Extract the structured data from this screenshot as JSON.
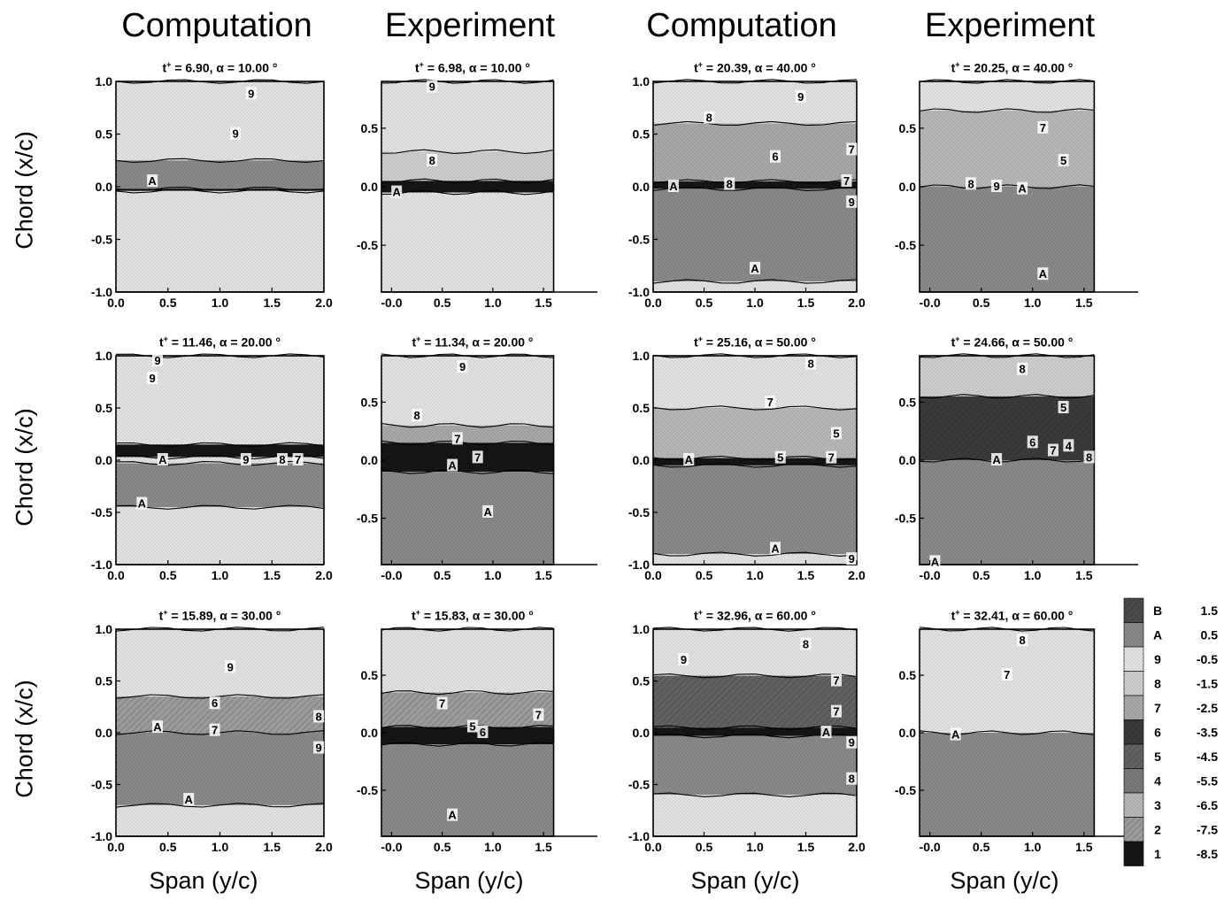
{
  "headers": {
    "col1": "Computation",
    "col2": "Experiment",
    "col3": "Computation",
    "col4": "Experiment"
  },
  "axis_labels": {
    "y_row1": "Chord (x/c)",
    "y_row2": "Chord (x/c)",
    "y_row3": "Chord (x/c)",
    "x_col1": "Span (y/c)",
    "x_col2": "Span (y/c)",
    "x_col3": "Span (y/c)",
    "x_col4": "Span (y/c)"
  },
  "chart_data": [
    {
      "type": "heatmap",
      "t_label": "t",
      "t_value": "6.90",
      "alpha": "10.00",
      "ylim": [
        -1.0,
        1.0
      ],
      "xlim": [
        0.0,
        2.0
      ],
      "x_ticks": [
        "0.0",
        "0.5",
        "1.0",
        "1.5",
        "2.0"
      ],
      "y_ticks": [
        "1.0",
        "0.5",
        "0.0",
        "-0.5",
        "-1.0"
      ],
      "contour_labels": [
        {
          "t": "9",
          "x": 1.3,
          "y": 0.88
        },
        {
          "t": "9",
          "x": 1.15,
          "y": 0.5
        },
        {
          "t": "A",
          "x": 0.35,
          "y": 0.05
        }
      ],
      "regions": [
        {
          "level": "9",
          "y0": 0.25,
          "y1": 1.0
        },
        {
          "level": "A",
          "y0": -0.02,
          "y1": 0.25
        },
        {
          "level": "1",
          "y0": -0.04,
          "y1": -0.02
        },
        {
          "level": "9",
          "y0": -1.0,
          "y1": -0.04
        }
      ]
    },
    {
      "type": "heatmap",
      "t_label": "t",
      "t_value": "6.98",
      "alpha": "10.00",
      "ylim": [
        -0.9,
        0.9
      ],
      "xlim": [
        -0.1,
        1.7
      ],
      "x_ticks": [
        "-0.0",
        "0.5",
        "1.0",
        "1.5"
      ],
      "y_ticks": [
        "0.5",
        "0.0",
        "-0.5"
      ],
      "contour_labels": [
        {
          "t": "9",
          "x": 0.4,
          "y": 0.85
        },
        {
          "t": "8",
          "x": 0.4,
          "y": 0.22
        },
        {
          "t": "A",
          "x": 0.05,
          "y": -0.05
        }
      ],
      "regions": [
        {
          "level": "9",
          "y0": 0.3,
          "y1": 0.9
        },
        {
          "level": "8",
          "y0": 0.05,
          "y1": 0.3
        },
        {
          "level": "1",
          "y0": -0.05,
          "y1": 0.05
        },
        {
          "level": "9",
          "y0": -0.9,
          "y1": -0.05
        }
      ]
    },
    {
      "type": "heatmap",
      "t_label": "t",
      "t_value": "20.39",
      "alpha": "40.00",
      "ylim": [
        -1.0,
        1.0
      ],
      "xlim": [
        0.0,
        2.0
      ],
      "x_ticks": [
        "0.0",
        "0.5",
        "1.0",
        "1.5",
        "2.0"
      ],
      "y_ticks": [
        "1.0",
        "0.5",
        "0.0",
        "-0.5",
        "-1.0"
      ],
      "contour_labels": [
        {
          "t": "9",
          "x": 1.45,
          "y": 0.85
        },
        {
          "t": "8",
          "x": 0.55,
          "y": 0.65
        },
        {
          "t": "6",
          "x": 1.2,
          "y": 0.28
        },
        {
          "t": "7",
          "x": 1.95,
          "y": 0.35
        },
        {
          "t": "A",
          "x": 0.2,
          "y": 0.0
        },
        {
          "t": "8",
          "x": 0.75,
          "y": 0.02
        },
        {
          "t": "7",
          "x": 1.9,
          "y": 0.05
        },
        {
          "t": "9",
          "x": 1.95,
          "y": -0.15
        },
        {
          "t": "A",
          "x": 1.0,
          "y": -0.78
        }
      ],
      "regions": [
        {
          "level": "9",
          "y0": 0.6,
          "y1": 1.0
        },
        {
          "level": "7",
          "y0": 0.05,
          "y1": 0.6
        },
        {
          "level": "1",
          "y0": -0.02,
          "y1": 0.05
        },
        {
          "level": "A",
          "y0": -0.9,
          "y1": -0.02
        },
        {
          "level": "9",
          "y0": -1.0,
          "y1": -0.9
        }
      ]
    },
    {
      "type": "heatmap",
      "t_label": "t",
      "t_value": "20.25",
      "alpha": "40.00",
      "ylim": [
        -0.9,
        0.9
      ],
      "xlim": [
        -0.1,
        1.7
      ],
      "x_ticks": [
        "-0.0",
        "0.5",
        "1.0",
        "1.5"
      ],
      "y_ticks": [
        "0.5",
        "0.0",
        "-0.5"
      ],
      "contour_labels": [
        {
          "t": "7",
          "x": 1.1,
          "y": 0.5
        },
        {
          "t": "5",
          "x": 1.3,
          "y": 0.22
        },
        {
          "t": "8",
          "x": 0.4,
          "y": 0.02
        },
        {
          "t": "9",
          "x": 0.65,
          "y": 0.0
        },
        {
          "t": "A",
          "x": 0.9,
          "y": -0.02
        },
        {
          "t": "A",
          "x": 1.1,
          "y": -0.75
        }
      ],
      "regions": [
        {
          "level": "9",
          "y0": 0.65,
          "y1": 0.9
        },
        {
          "level": "3",
          "y0": 0.0,
          "y1": 0.65
        },
        {
          "level": "A",
          "y0": -0.9,
          "y1": 0.0
        }
      ]
    },
    {
      "type": "heatmap",
      "t_label": "t",
      "t_value": "11.46",
      "alpha": "20.00",
      "ylim": [
        -1.0,
        1.0
      ],
      "xlim": [
        0.0,
        2.0
      ],
      "x_ticks": [
        "0.0",
        "0.5",
        "1.0",
        "1.5",
        "2.0"
      ],
      "y_ticks": [
        "1.0",
        "0.5",
        "0.0",
        "-0.5",
        "-1.0"
      ],
      "contour_labels": [
        {
          "t": "9",
          "x": 0.4,
          "y": 0.95
        },
        {
          "t": "9",
          "x": 0.35,
          "y": 0.78
        },
        {
          "t": "A",
          "x": 0.45,
          "y": 0.0
        },
        {
          "t": "9",
          "x": 1.25,
          "y": 0.0
        },
        {
          "t": "8",
          "x": 1.6,
          "y": 0.0
        },
        {
          "t": "7",
          "x": 1.75,
          "y": 0.0
        },
        {
          "t": "A",
          "x": 0.25,
          "y": -0.42
        }
      ],
      "regions": [
        {
          "level": "9",
          "y0": 0.15,
          "y1": 1.0
        },
        {
          "level": "1",
          "y0": 0.03,
          "y1": 0.15
        },
        {
          "level": "9",
          "y0": -0.03,
          "y1": 0.03
        },
        {
          "level": "A",
          "y0": -0.45,
          "y1": -0.03
        },
        {
          "level": "9",
          "y0": -1.0,
          "y1": -0.45
        }
      ]
    },
    {
      "type": "heatmap",
      "t_label": "t",
      "t_value": "11.34",
      "alpha": "20.00",
      "ylim": [
        -0.9,
        0.9
      ],
      "xlim": [
        -0.1,
        1.7
      ],
      "x_ticks": [
        "-0.0",
        "0.5",
        "1.0",
        "1.5"
      ],
      "y_ticks": [
        "0.5",
        "0.0",
        "-0.5"
      ],
      "contour_labels": [
        {
          "t": "9",
          "x": 0.7,
          "y": 0.8
        },
        {
          "t": "8",
          "x": 0.25,
          "y": 0.38
        },
        {
          "t": "7",
          "x": 0.65,
          "y": 0.18
        },
        {
          "t": "7",
          "x": 0.85,
          "y": 0.02
        },
        {
          "t": "A",
          "x": 0.6,
          "y": -0.05
        },
        {
          "t": "A",
          "x": 0.95,
          "y": -0.45
        }
      ],
      "regions": [
        {
          "level": "9",
          "y0": 0.3,
          "y1": 0.9
        },
        {
          "level": "7",
          "y0": 0.15,
          "y1": 0.3
        },
        {
          "level": "1",
          "y0": -0.1,
          "y1": 0.15
        },
        {
          "level": "A",
          "y0": -0.9,
          "y1": -0.1
        }
      ]
    },
    {
      "type": "heatmap",
      "t_label": "t",
      "t_value": "25.16",
      "alpha": "50.00",
      "ylim": [
        -1.0,
        1.0
      ],
      "xlim": [
        0.0,
        2.0
      ],
      "x_ticks": [
        "0.0",
        "0.5",
        "1.0",
        "1.5",
        "2.0"
      ],
      "y_ticks": [
        "1.0",
        "0.5",
        "0.0",
        "-0.5",
        "-1.0"
      ],
      "contour_labels": [
        {
          "t": "8",
          "x": 1.55,
          "y": 0.92
        },
        {
          "t": "7",
          "x": 1.15,
          "y": 0.55
        },
        {
          "t": "5",
          "x": 1.8,
          "y": 0.25
        },
        {
          "t": "A",
          "x": 0.35,
          "y": 0.0
        },
        {
          "t": "5",
          "x": 1.25,
          "y": 0.02
        },
        {
          "t": "7",
          "x": 1.75,
          "y": 0.02
        },
        {
          "t": "A",
          "x": 1.2,
          "y": -0.85
        },
        {
          "t": "9",
          "x": 1.95,
          "y": -0.95
        }
      ],
      "regions": [
        {
          "level": "9",
          "y0": 0.5,
          "y1": 1.0
        },
        {
          "level": "3",
          "y0": 0.02,
          "y1": 0.5
        },
        {
          "level": "1",
          "y0": -0.05,
          "y1": 0.02
        },
        {
          "level": "A",
          "y0": -0.9,
          "y1": -0.05
        },
        {
          "level": "9",
          "y0": -1.0,
          "y1": -0.9
        }
      ]
    },
    {
      "type": "heatmap",
      "t_label": "t",
      "t_value": "24.66",
      "alpha": "50.00",
      "ylim": [
        -0.9,
        0.9
      ],
      "xlim": [
        -0.1,
        1.7
      ],
      "x_ticks": [
        "-0.0",
        "0.5",
        "1.0",
        "1.5"
      ],
      "y_ticks": [
        "0.5",
        "0.0",
        "-0.5"
      ],
      "contour_labels": [
        {
          "t": "8",
          "x": 0.9,
          "y": 0.78
        },
        {
          "t": "5",
          "x": 1.3,
          "y": 0.45
        },
        {
          "t": "6",
          "x": 1.0,
          "y": 0.15
        },
        {
          "t": "7",
          "x": 1.2,
          "y": 0.08
        },
        {
          "t": "4",
          "x": 1.35,
          "y": 0.12
        },
        {
          "t": "8",
          "x": 1.55,
          "y": 0.02
        },
        {
          "t": "A",
          "x": 0.65,
          "y": 0.0
        },
        {
          "t": "A",
          "x": 0.05,
          "y": -0.88
        }
      ],
      "regions": [
        {
          "level": "8",
          "y0": 0.55,
          "y1": 0.9
        },
        {
          "level": "6",
          "y0": 0.0,
          "y1": 0.55
        },
        {
          "level": "A",
          "y0": -0.9,
          "y1": 0.0
        }
      ]
    },
    {
      "type": "heatmap",
      "t_label": "t",
      "t_value": "15.89",
      "alpha": "30.00",
      "ylim": [
        -1.0,
        1.0
      ],
      "xlim": [
        0.0,
        2.0
      ],
      "x_ticks": [
        "0.0",
        "0.5",
        "1.0",
        "1.5",
        "2.0"
      ],
      "y_ticks": [
        "1.0",
        "0.5",
        "0.0",
        "-0.5",
        "-1.0"
      ],
      "contour_labels": [
        {
          "t": "9",
          "x": 1.1,
          "y": 0.63
        },
        {
          "t": "6",
          "x": 0.95,
          "y": 0.28
        },
        {
          "t": "8",
          "x": 1.95,
          "y": 0.15
        },
        {
          "t": "A",
          "x": 0.4,
          "y": 0.05
        },
        {
          "t": "7",
          "x": 0.95,
          "y": 0.02
        },
        {
          "t": "9",
          "x": 1.95,
          "y": -0.15
        },
        {
          "t": "A",
          "x": 0.7,
          "y": -0.65
        }
      ],
      "regions": [
        {
          "level": "9",
          "y0": 0.35,
          "y1": 1.0
        },
        {
          "level": "2",
          "y0": 0.0,
          "y1": 0.35
        },
        {
          "level": "A",
          "y0": -0.7,
          "y1": 0.0
        },
        {
          "level": "9",
          "y0": -1.0,
          "y1": -0.7
        }
      ]
    },
    {
      "type": "heatmap",
      "t_label": "t",
      "t_value": "15.83",
      "alpha": "30.00",
      "ylim": [
        -0.9,
        0.9
      ],
      "xlim": [
        -0.1,
        1.7
      ],
      "x_ticks": [
        "-0.0",
        "0.5",
        "1.0",
        "1.5"
      ],
      "y_ticks": [
        "0.5",
        "0.0",
        "-0.5"
      ],
      "contour_labels": [
        {
          "t": "7",
          "x": 0.5,
          "y": 0.25
        },
        {
          "t": "7",
          "x": 1.45,
          "y": 0.15
        },
        {
          "t": "5",
          "x": 0.8,
          "y": 0.05
        },
        {
          "t": "6",
          "x": 0.9,
          "y": 0.0
        },
        {
          "t": "A",
          "x": 0.6,
          "y": -0.72
        }
      ],
      "regions": [
        {
          "level": "9",
          "y0": 0.35,
          "y1": 0.9
        },
        {
          "level": "2",
          "y0": 0.05,
          "y1": 0.35
        },
        {
          "level": "1",
          "y0": -0.1,
          "y1": 0.05
        },
        {
          "level": "A",
          "y0": -0.9,
          "y1": -0.1
        }
      ]
    },
    {
      "type": "heatmap",
      "t_label": "t",
      "t_value": "32.96",
      "alpha": "60.00",
      "ylim": [
        -1.0,
        1.0
      ],
      "xlim": [
        0.0,
        2.0
      ],
      "x_ticks": [
        "0.0",
        "0.5",
        "1.0",
        "1.5",
        "2.0"
      ],
      "y_ticks": [
        "1.0",
        "0.5",
        "0.0",
        "-0.5",
        "-1.0"
      ],
      "contour_labels": [
        {
          "t": "9",
          "x": 0.3,
          "y": 0.7
        },
        {
          "t": "8",
          "x": 1.5,
          "y": 0.85
        },
        {
          "t": "7",
          "x": 1.8,
          "y": 0.5
        },
        {
          "t": "7",
          "x": 1.8,
          "y": 0.2
        },
        {
          "t": "A",
          "x": 1.7,
          "y": 0.0
        },
        {
          "t": "9",
          "x": 1.95,
          "y": -0.1
        },
        {
          "t": "8",
          "x": 1.95,
          "y": -0.45
        }
      ],
      "regions": [
        {
          "level": "9",
          "y0": 0.55,
          "y1": 1.0
        },
        {
          "level": "5",
          "y0": 0.05,
          "y1": 0.55
        },
        {
          "level": "1",
          "y0": -0.03,
          "y1": 0.05
        },
        {
          "level": "A",
          "y0": -0.6,
          "y1": -0.03
        },
        {
          "level": "9",
          "y0": -1.0,
          "y1": -0.6
        }
      ]
    },
    {
      "type": "heatmap",
      "t_label": "t",
      "t_value": "32.41",
      "alpha": "60.00",
      "ylim": [
        -0.9,
        0.9
      ],
      "xlim": [
        -0.1,
        1.7
      ],
      "x_ticks": [
        "-0.0",
        "0.5",
        "1.0",
        "1.5"
      ],
      "y_ticks": [
        "0.5",
        "0.0",
        "-0.5"
      ],
      "contour_labels": [
        {
          "t": "8",
          "x": 0.9,
          "y": 0.8
        },
        {
          "t": "7",
          "x": 0.75,
          "y": 0.5
        },
        {
          "t": "A",
          "x": 0.25,
          "y": -0.02
        }
      ],
      "regions": [
        {
          "level": "9",
          "y0": 0.0,
          "y1": 0.9
        },
        {
          "level": "A",
          "y0": -0.9,
          "y1": 0.0
        }
      ]
    }
  ],
  "legend": {
    "entries": [
      {
        "level": "B",
        "value": "1.5"
      },
      {
        "level": "A",
        "value": "0.5"
      },
      {
        "level": "9",
        "value": "-0.5"
      },
      {
        "level": "8",
        "value": "-1.5"
      },
      {
        "level": "7",
        "value": "-2.5"
      },
      {
        "level": "6",
        "value": "-3.5"
      },
      {
        "level": "5",
        "value": "-4.5"
      },
      {
        "level": "4",
        "value": "-5.5"
      },
      {
        "level": "3",
        "value": "-6.5"
      },
      {
        "level": "2",
        "value": "-7.5"
      },
      {
        "level": "1",
        "value": "-8.5"
      }
    ]
  },
  "level_colors": {
    "B": "#4a4a4a",
    "A": "#8a8a8a",
    "9": "#e4e4e4",
    "8": "#cfcfcf",
    "7": "#a9a9a9",
    "6": "#3a3a3a",
    "5": "#606060",
    "4": "#7a7a7a",
    "3": "#b8b8b8",
    "2": "#9a9a9a",
    "1": "#151515"
  }
}
